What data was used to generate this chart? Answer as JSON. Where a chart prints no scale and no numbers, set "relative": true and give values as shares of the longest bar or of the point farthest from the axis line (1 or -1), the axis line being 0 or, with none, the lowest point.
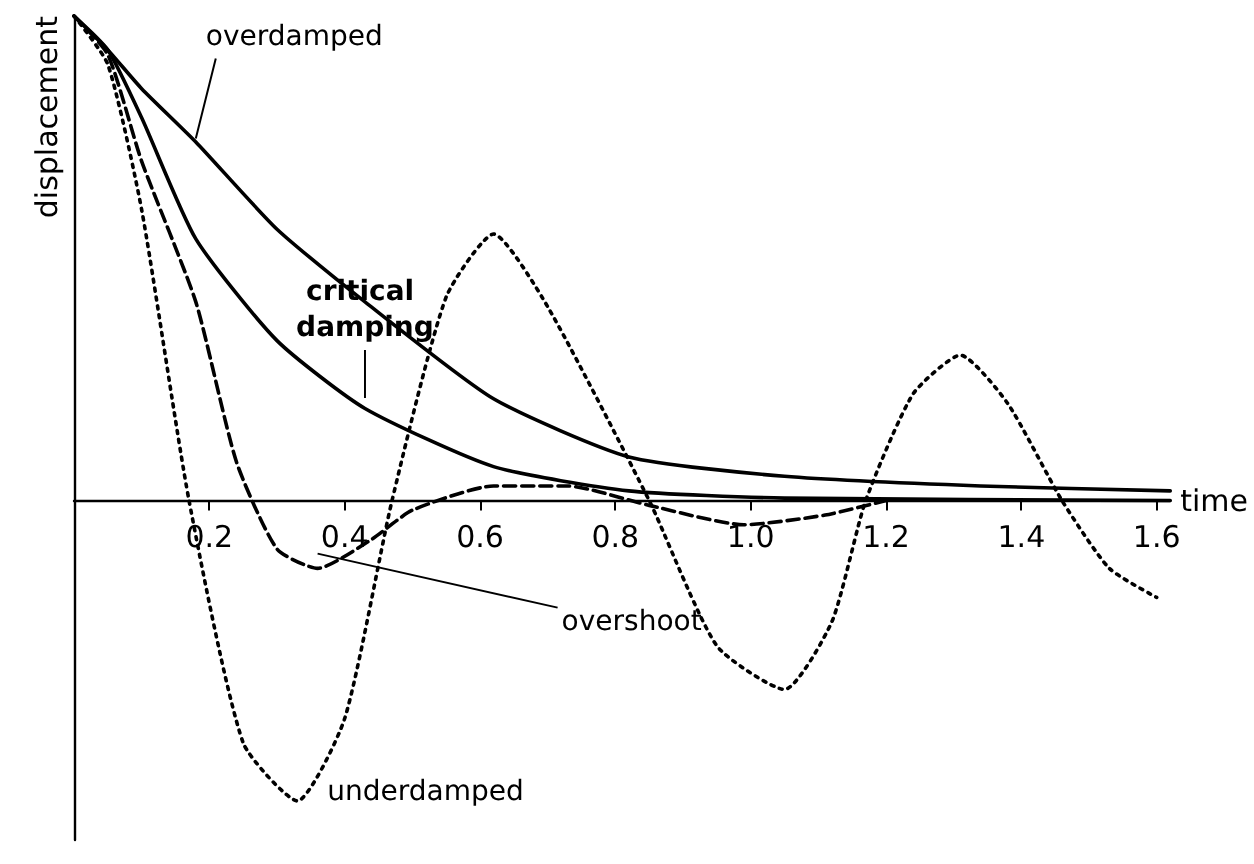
{
  "chart_data": {
    "type": "line",
    "relative": true,
    "xlabel": "time",
    "ylabel": "displacement",
    "xlim": [
      0,
      1.62
    ],
    "xticks": [
      0.2,
      0.4,
      0.6,
      0.8,
      {
        "value": 1,
        "label": "1.0"
      },
      1.2,
      1.4,
      1.6
    ],
    "grid": false,
    "legend": false,
    "marker": "none",
    "series": [
      {
        "name": "overdamped",
        "color": "#000000",
        "line_style": "solid",
        "x": [
          0,
          0.05,
          0.1,
          0.18,
          0.3,
          0.43,
          0.62,
          0.82,
          1.05,
          1.34,
          1.62
        ],
        "values": [
          1,
          0.93,
          0.85,
          0.74,
          0.56,
          0.41,
          0.21,
          0.09,
          0.05,
          0.03,
          0.02
        ]
      },
      {
        "name": "critical damping",
        "color": "#000000",
        "line_style": "solid",
        "x": [
          0,
          0.05,
          0.1,
          0.18,
          0.3,
          0.43,
          0.62,
          0.82,
          1.05,
          1.62
        ],
        "values": [
          1,
          0.93,
          0.79,
          0.54,
          0.33,
          0.19,
          0.07,
          0.02,
          0.005,
          0
        ]
      },
      {
        "name": "overshoot",
        "color": "#000000",
        "line_style": "dashed",
        "x": [
          0,
          0.05,
          0.1,
          0.18,
          0.24,
          0.3,
          0.36,
          0.44,
          0.5,
          0.62,
          0.73,
          0.85,
          0.99,
          1.11,
          1.2
        ],
        "values": [
          1,
          0.92,
          0.7,
          0.41,
          0.08,
          -0.1,
          -0.14,
          -0.08,
          -0.02,
          0.03,
          0.03,
          -0.01,
          -0.05,
          -0.03,
          0
        ]
      },
      {
        "name": "underdamped",
        "color": "#000000",
        "line_style": "dotted",
        "x": [
          0,
          0.05,
          0.1,
          0.17,
          0.25,
          0.33,
          0.4,
          0.47,
          0.55,
          0.62,
          0.7,
          0.85,
          0.95,
          1.05,
          1.12,
          1.17,
          1.24,
          1.31,
          1.38,
          1.46,
          1.53,
          1.6
        ],
        "values": [
          1,
          0.9,
          0.6,
          0,
          -0.5,
          -0.62,
          -0.45,
          0,
          0.42,
          0.55,
          0.4,
          0,
          -0.3,
          -0.39,
          -0.25,
          0,
          0.22,
          0.3,
          0.2,
          0,
          -0.14,
          -0.2
        ]
      }
    ]
  }
}
